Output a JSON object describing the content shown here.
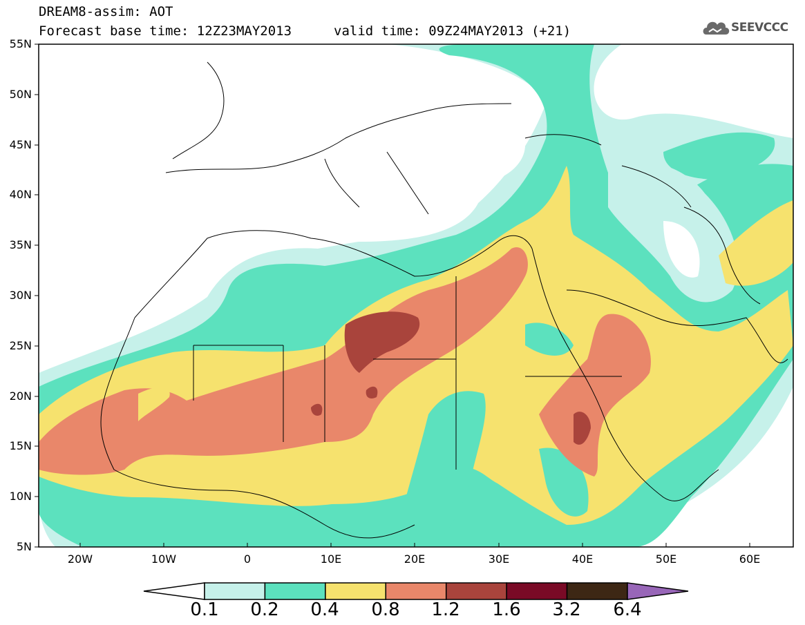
{
  "title": {
    "line1": "DREAM8-assim: AOT",
    "line2": "Forecast base time: 12Z23MAY2013",
    "valid": "valid time: 09Z24MAY2013 (+21)"
  },
  "logo": {
    "text": "SEEVCCC",
    "icon": "cloud-logo-icon"
  },
  "map": {
    "lat_labels": [
      "55N",
      "50N",
      "45N",
      "40N",
      "35N",
      "30N",
      "25N",
      "20N",
      "15N",
      "10N",
      "5N"
    ],
    "lon_labels": [
      "20W",
      "10W",
      "0",
      "10E",
      "20E",
      "30E",
      "40E",
      "50E",
      "60E"
    ],
    "region": {
      "lon_range": [
        -25,
        65
      ],
      "lat_range": [
        5,
        55
      ]
    }
  },
  "colorbar": {
    "colors": [
      "#ffffff",
      "#c6f1ea",
      "#5ce1be",
      "#f6e26e",
      "#e9876a",
      "#a9443c",
      "#7a0a26",
      "#3d2714",
      "#9866b8"
    ],
    "labels": [
      "0.1",
      "0.2",
      "0.4",
      "0.8",
      "1.2",
      "1.6",
      "3.2",
      "6.4"
    ]
  },
  "palette": {
    "c01": "#c6f1ea",
    "c02": "#5ce1be",
    "c04": "#f6e26e",
    "c08": "#e9876a",
    "c12": "#a9443c"
  }
}
